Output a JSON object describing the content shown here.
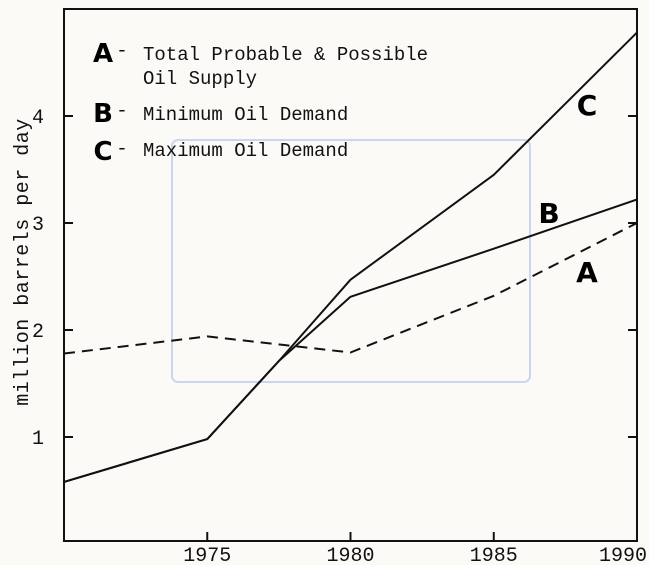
{
  "chart_data": {
    "type": "line",
    "title": "",
    "xlabel": "",
    "ylabel": "million barrels per day",
    "xlim": [
      1970,
      1990
    ],
    "ylim": [
      0,
      5
    ],
    "x_ticks": [
      "1975",
      "1980",
      "1985",
      "1990"
    ],
    "y_ticks": [
      "1",
      "2",
      "3",
      "4"
    ],
    "grid": false,
    "legend": {
      "placement": "top-left",
      "entries": [
        {
          "letter": "A",
          "dash": "-",
          "lines": [
            "Total Probable & Possible",
            "Oil Supply"
          ]
        },
        {
          "letter": "B",
          "dash": "-",
          "lines": [
            "Minimum Oil Demand"
          ]
        },
        {
          "letter": "C",
          "dash": "-",
          "lines": [
            "Maximum Oil Demand"
          ]
        }
      ]
    },
    "series": [
      {
        "name": "A",
        "style": "dashed",
        "x": [
          1970,
          1975,
          1980,
          1985,
          1990
        ],
        "y": [
          1.78,
          1.94,
          1.79,
          2.32,
          3.0
        ]
      },
      {
        "name": "B",
        "style": "solid",
        "x": [
          1970,
          1975,
          1977.5,
          1980,
          1985,
          1990
        ],
        "y": [
          0.58,
          0.98,
          1.71,
          2.31,
          2.76,
          3.22
        ]
      },
      {
        "name": "C",
        "style": "solid",
        "x": [
          1970,
          1975,
          1977.5,
          1980,
          1985,
          1990
        ],
        "y": [
          0.58,
          0.98,
          1.71,
          2.47,
          3.45,
          4.78
        ]
      }
    ],
    "colors": {
      "line": "#111111",
      "background": "#fbfaf6"
    }
  }
}
